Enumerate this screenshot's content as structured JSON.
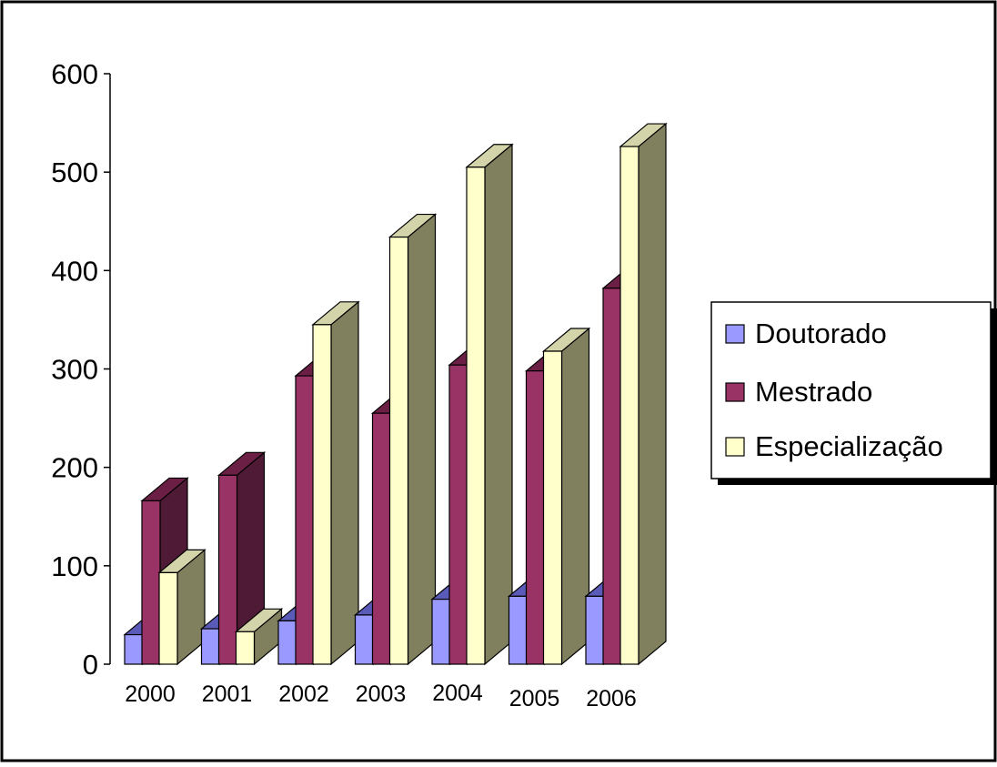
{
  "chart_data": {
    "type": "bar",
    "title": "",
    "xlabel": "",
    "ylabel": "",
    "ylim": [
      0,
      600
    ],
    "yticks": [
      "0",
      "100",
      "200",
      "300",
      "400",
      "500",
      "600"
    ],
    "categories": [
      "2000",
      "2001",
      "2002",
      "2003",
      "2004",
      "2005",
      "2006"
    ],
    "series": [
      {
        "name": "Doutorado",
        "values": [
          30,
          36,
          44,
          50,
          66,
          69,
          69
        ],
        "color": "#9999ff",
        "top_color": "#5a5ab8",
        "side_color": "#6a6ac8"
      },
      {
        "name": "Mestrado",
        "values": [
          166,
          192,
          293,
          255,
          304,
          298,
          382
        ],
        "color": "#993366",
        "top_color": "#6b1f45",
        "side_color": "#4f1a35"
      },
      {
        "name": "Especialização",
        "values": [
          93,
          33,
          345,
          434,
          505,
          318,
          526
        ],
        "color": "#ffffcc",
        "top_color": "#d4d4aa",
        "side_color": "#80805f"
      }
    ],
    "legend_position": "right",
    "grid": false,
    "three_d": true
  }
}
